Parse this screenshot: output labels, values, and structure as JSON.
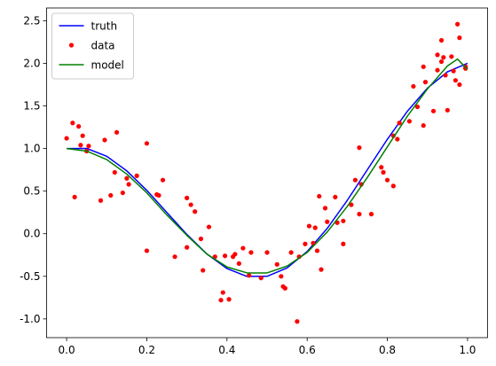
{
  "chart_data": {
    "type": "line",
    "xlim": [
      -0.05,
      1.05
    ],
    "ylim": [
      -1.22,
      2.65
    ],
    "xticks": [
      {
        "value": 0,
        "label": "0.0"
      },
      0.2,
      0.4,
      0.6,
      0.8,
      {
        "value": 1,
        "label": "1.0"
      }
    ],
    "yticks": [
      {
        "value": -1,
        "label": "-1.0"
      },
      -0.5,
      {
        "value": 0,
        "label": "0.0"
      },
      0.5,
      {
        "value": 1,
        "label": "1.0"
      },
      1.5,
      {
        "value": 2,
        "label": "2.0"
      },
      2.5
    ],
    "legend": "upper left",
    "series": [
      {
        "name": "truth",
        "color": "#0000ff",
        "kind": "line",
        "x": [
          0,
          0.05,
          0.1,
          0.15,
          0.2,
          0.25,
          0.3,
          0.35,
          0.4,
          0.45,
          0.5,
          0.55,
          0.6,
          0.65,
          0.7,
          0.75,
          0.8,
          0.85,
          0.9,
          0.95,
          1.0
        ],
        "values": [
          1.0,
          1.001,
          0.909,
          0.738,
          0.509,
          0.25,
          -0.009,
          -0.238,
          -0.409,
          -0.501,
          -0.5,
          -0.401,
          -0.209,
          0.062,
          0.391,
          0.75,
          1.109,
          1.438,
          1.709,
          1.901,
          2.0
        ]
      },
      {
        "name": "data",
        "color": "#ff0000",
        "kind": "points",
        "x": [
          0.0,
          0.015,
          0.02,
          0.03,
          0.035,
          0.04,
          0.05,
          0.055,
          0.085,
          0.095,
          0.11,
          0.12,
          0.125,
          0.14,
          0.15,
          0.155,
          0.175,
          0.2,
          0.2,
          0.225,
          0.23,
          0.24,
          0.27,
          0.3,
          0.3,
          0.31,
          0.32,
          0.335,
          0.34,
          0.355,
          0.37,
          0.385,
          0.39,
          0.395,
          0.405,
          0.415,
          0.42,
          0.43,
          0.44,
          0.455,
          0.46,
          0.485,
          0.5,
          0.525,
          0.535,
          0.54,
          0.545,
          0.56,
          0.575,
          0.58,
          0.595,
          0.605,
          0.615,
          0.62,
          0.625,
          0.63,
          0.635,
          0.645,
          0.65,
          0.67,
          0.675,
          0.69,
          0.69,
          0.71,
          0.72,
          0.73,
          0.73,
          0.735,
          0.76,
          0.785,
          0.79,
          0.8,
          0.815,
          0.815,
          0.825,
          0.83,
          0.855,
          0.865,
          0.875,
          0.89,
          0.89,
          0.895,
          0.915,
          0.925,
          0.925,
          0.935,
          0.935,
          0.94,
          0.945,
          0.95,
          0.96,
          0.965,
          0.97,
          0.975,
          0.98,
          0.98,
          0.995,
          0.995
        ],
        "values": [
          1.12,
          1.3,
          0.43,
          1.26,
          1.04,
          1.15,
          0.97,
          1.03,
          0.39,
          1.1,
          0.45,
          0.72,
          1.19,
          0.48,
          0.65,
          0.58,
          0.68,
          1.06,
          -0.2,
          0.46,
          0.45,
          0.63,
          -0.27,
          0.42,
          -0.16,
          0.34,
          0.26,
          -0.06,
          -0.43,
          0.08,
          -0.27,
          -0.78,
          -0.69,
          -0.26,
          -0.77,
          -0.27,
          -0.24,
          -0.35,
          -0.17,
          -0.49,
          -0.22,
          -0.52,
          -0.22,
          -0.36,
          -0.5,
          -0.62,
          -0.64,
          -0.22,
          -1.03,
          -0.27,
          -0.12,
          0.09,
          -0.11,
          0.07,
          -0.2,
          0.44,
          -0.42,
          0.3,
          0.14,
          0.43,
          0.13,
          -0.12,
          0.15,
          0.34,
          0.63,
          1.01,
          0.23,
          0.58,
          0.23,
          0.78,
          0.72,
          0.63,
          0.56,
          1.15,
          1.11,
          1.3,
          1.32,
          1.73,
          1.49,
          1.96,
          1.27,
          1.78,
          1.44,
          2.1,
          1.92,
          2.27,
          2.02,
          2.07,
          1.86,
          1.45,
          2.08,
          1.91,
          1.8,
          2.46,
          2.3,
          1.75,
          1.96,
          1.94
        ]
      },
      {
        "name": "model",
        "color": "#008000",
        "kind": "line",
        "x": [
          0,
          0.05,
          0.1,
          0.15,
          0.2,
          0.25,
          0.3,
          0.35,
          0.4,
          0.45,
          0.5,
          0.55,
          0.6,
          0.65,
          0.7,
          0.75,
          0.8,
          0.85,
          0.9,
          0.95,
          0.975,
          1.0
        ],
        "values": [
          1.0,
          0.97,
          0.87,
          0.7,
          0.48,
          0.22,
          -0.02,
          -0.24,
          -0.39,
          -0.46,
          -0.46,
          -0.38,
          -0.22,
          0.02,
          0.32,
          0.66,
          1.02,
          1.38,
          1.7,
          1.97,
          2.05,
          1.93
        ]
      }
    ]
  }
}
